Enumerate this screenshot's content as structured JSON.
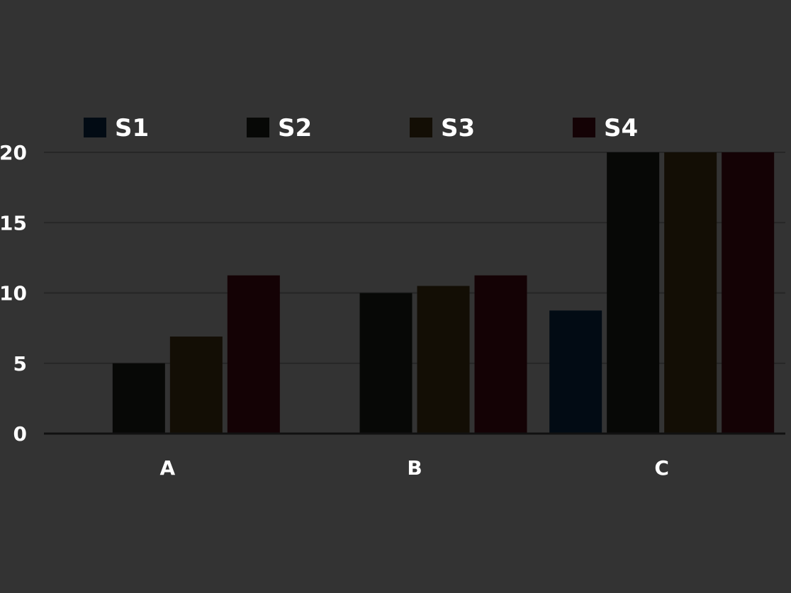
{
  "chart_data": {
    "type": "bar",
    "title": "",
    "xlabel": "",
    "ylabel": "",
    "categories": [
      "A",
      "B",
      "C"
    ],
    "y_ticks": [
      "0",
      "5",
      "10",
      "15",
      "20"
    ],
    "ylim": [
      0,
      20
    ],
    "grid": true,
    "legend_position": "top",
    "series": [
      {
        "name": "S1",
        "color": "#020b14",
        "values": [
          null,
          null,
          8.75
        ]
      },
      {
        "name": "S2",
        "color": "#070806",
        "values": [
          5,
          10,
          20
        ]
      },
      {
        "name": "S3",
        "color": "#130e05",
        "values": [
          6.9,
          10.5,
          20
        ]
      },
      {
        "name": "S4",
        "color": "#140205",
        "values": [
          11.25,
          11.25,
          20
        ]
      }
    ]
  }
}
